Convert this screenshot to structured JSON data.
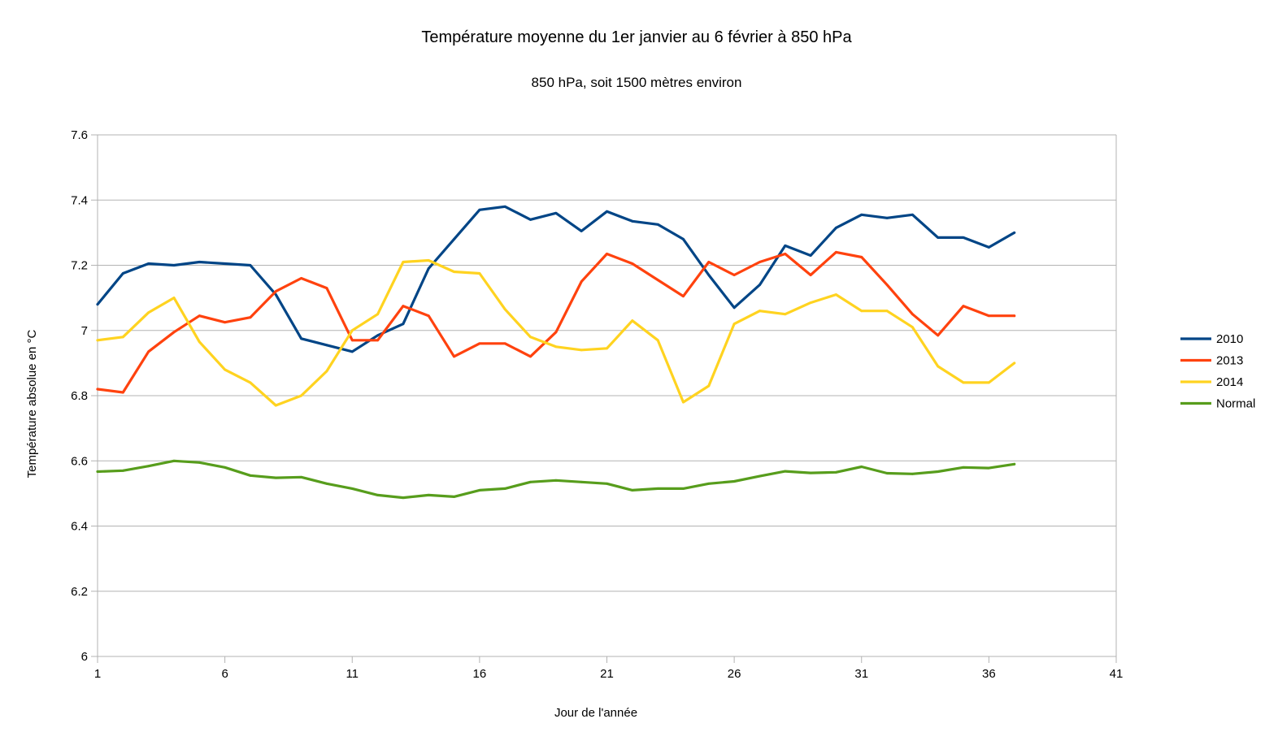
{
  "chart_data": {
    "type": "line",
    "title": "Température moyenne du 1er janvier au 6 février à 850 hPa",
    "subtitle": "850 hPa, soit 1500 mètres environ",
    "xlabel": "Jour de l'année",
    "ylabel": "Température absolue en °C",
    "xlim": [
      1,
      41
    ],
    "ylim": [
      6,
      7.6
    ],
    "x_ticks": [
      1,
      6,
      11,
      16,
      21,
      26,
      31,
      36,
      41
    ],
    "x_tick_labels": [
      "1",
      "6",
      "11",
      "16",
      "21",
      "26",
      "31",
      "36",
      "41"
    ],
    "y_ticks": [
      6,
      6.2,
      6.4,
      6.6,
      6.8,
      7,
      7.2,
      7.4,
      7.6
    ],
    "y_tick_labels": [
      "6",
      "6.2",
      "6.4",
      "6.6",
      "6.8",
      "7",
      "7.2",
      "7.4",
      "7.6"
    ],
    "grid": true,
    "legend_position": "right",
    "x": [
      1,
      2,
      3,
      4,
      5,
      6,
      7,
      8,
      9,
      10,
      11,
      12,
      13,
      14,
      15,
      16,
      17,
      18,
      19,
      20,
      21,
      22,
      23,
      24,
      25,
      26,
      27,
      28,
      29,
      30,
      31,
      32,
      33,
      34,
      35,
      36,
      37
    ],
    "series": [
      {
        "name": "2010",
        "color": "#004586",
        "values": [
          7.08,
          7.175,
          7.205,
          7.2,
          7.21,
          7.205,
          7.2,
          7.11,
          6.975,
          6.955,
          6.935,
          6.985,
          7.02,
          7.19,
          7.28,
          7.37,
          7.38,
          7.34,
          7.36,
          7.305,
          7.365,
          7.335,
          7.325,
          7.28,
          7.17,
          7.07,
          7.14,
          7.26,
          7.23,
          7.315,
          7.355,
          7.345,
          7.355,
          7.285,
          7.285,
          7.255,
          7.3
        ]
      },
      {
        "name": "2013",
        "color": "#ff420e",
        "values": [
          6.82,
          6.81,
          6.935,
          6.995,
          7.045,
          7.025,
          7.04,
          7.12,
          7.16,
          7.13,
          6.97,
          6.97,
          7.075,
          7.045,
          6.92,
          6.96,
          6.96,
          6.92,
          6.995,
          7.15,
          7.235,
          7.205,
          7.155,
          7.105,
          7.21,
          7.17,
          7.21,
          7.235,
          7.17,
          7.24,
          7.225,
          7.14,
          7.05,
          6.985,
          7.075,
          7.045,
          7.045
        ]
      },
      {
        "name": "2014",
        "color": "#ffd320",
        "values": [
          6.97,
          6.98,
          7.055,
          7.1,
          6.965,
          6.88,
          6.84,
          6.77,
          6.8,
          6.875,
          7.0,
          7.05,
          7.21,
          7.215,
          7.18,
          7.175,
          7.065,
          6.98,
          6.95,
          6.94,
          6.945,
          7.03,
          6.97,
          6.78,
          6.83,
          7.02,
          7.06,
          7.05,
          7.085,
          7.11,
          7.06,
          7.06,
          7.01,
          6.89,
          6.84,
          6.84,
          6.9
        ]
      },
      {
        "name": "Normal",
        "color": "#579d1c",
        "values": [
          6.567,
          6.57,
          6.584,
          6.6,
          6.595,
          6.58,
          6.555,
          6.548,
          6.55,
          6.53,
          6.515,
          6.495,
          6.487,
          6.495,
          6.49,
          6.51,
          6.515,
          6.535,
          6.54,
          6.535,
          6.53,
          6.51,
          6.515,
          6.515,
          6.53,
          6.537,
          6.553,
          6.568,
          6.563,
          6.565,
          6.582,
          6.562,
          6.56,
          6.567,
          6.58,
          6.578,
          6.59
        ]
      }
    ]
  }
}
